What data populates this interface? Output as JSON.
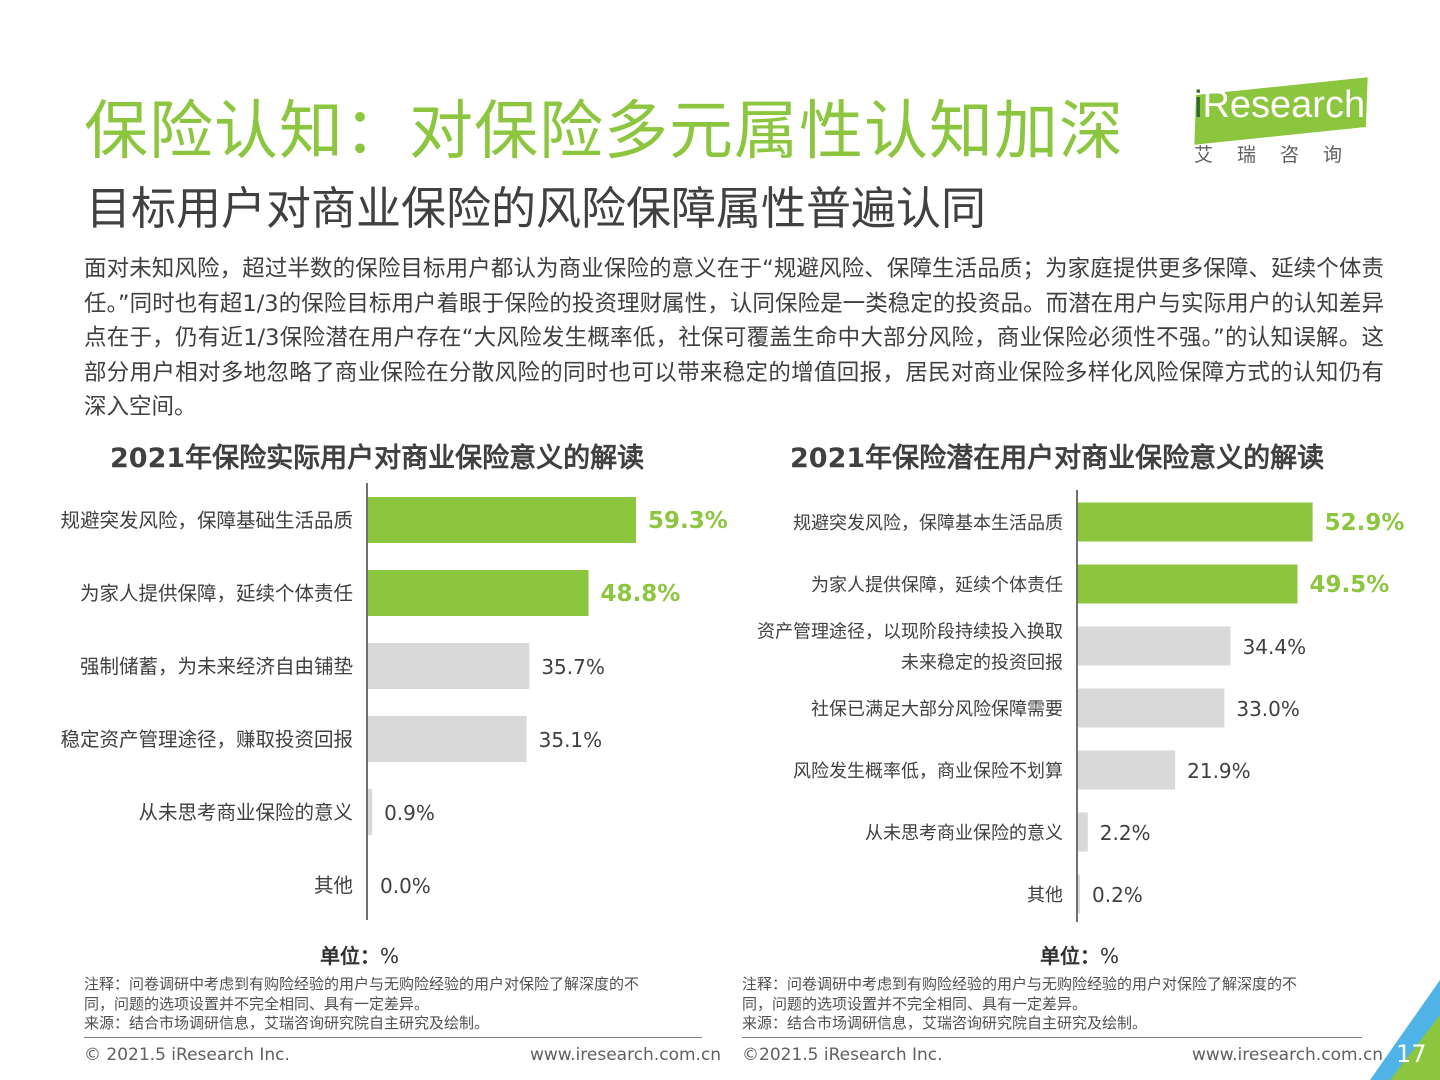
{
  "header": {
    "title": "保险认知：对保险多元属性认知加深",
    "subtitle": "目标用户对商业保险的风险保障属性普遍认同"
  },
  "logo": {
    "word_i": "i",
    "word_rest": "Research",
    "cn": "艾瑞咨询"
  },
  "summary": "面对未知风险，超过半数的保险目标用户都认为商业保险的意义在于“规避风险、保障生活品质；为家庭提供更多保障、延续个体责任。”同时也有超1/3的保险目标用户着眼于保险的投资理财属性，认同保险是一类稳定的投资品。而潜在用户与实际用户的认知差异点在于，仍有近1/3保险潜在用户存在“大风险发生概率低，社保可覆盖生命中大部分风险，商业保险必须性不强。”的认知误解。这部分用户相对多地忽略了商业保险在分散风险的同时也可以带来稳定的增值回报，居民对商业保险多样化风险保障方式的认知仍有深入空间。",
  "colors": {
    "accent": "#8cc63f",
    "bar_gray": "#d9d9d9",
    "axis": "#404040",
    "highlight_label": "#8cc63f",
    "corner_blue": "#4fb3e8"
  },
  "left_panel": {
    "unit_label": "单位：",
    "unit_value": "%",
    "note_line1": "注释：问卷调研中考虑到有购险经验的用户与无购险经验的用户对保险了解深度的不",
    "note_line2": "同，问题的选项设置并不完全相同、具有一定差异。",
    "source": "来源：结合市场调研信息，艾瑞咨询研究院自主研究及绘制。",
    "footer_left": "© 2021.5 iResearch Inc.",
    "footer_right": "www.iresearch.com.cn"
  },
  "right_panel": {
    "unit_label": "单位：",
    "unit_value": "%",
    "note_line1": "注释：问卷调研中考虑到有购险经验的用户与无购险经验的用户对保险了解深度的不",
    "note_line2": "同，问题的选项设置并不完全相同、具有一定差异。",
    "source": "来源：结合市场调研信息，艾瑞咨询研究院自主研究及绘制。",
    "footer_left": "©2021.5 iResearch Inc.",
    "footer_right": "www.iresearch.com.cn"
  },
  "page_number": "17",
  "chart_data": [
    {
      "type": "bar",
      "orientation": "horizontal",
      "title": "2021年保险实际用户对商业保险意义的解读",
      "categories": [
        [
          "规避突发风险，保障基础生活品质"
        ],
        [
          "为家人提供保障，延续个体责任"
        ],
        [
          "强制储蓄，为未来经济自由铺垫"
        ],
        [
          "稳定资产管理途径，赚取投资回报"
        ],
        [
          "从未思考商业保险的意义"
        ],
        [
          "其他"
        ]
      ],
      "values": [
        59.3,
        48.8,
        35.7,
        35.1,
        0.9,
        0.0
      ],
      "value_labels": [
        "59.3%",
        "48.8%",
        "35.7%",
        "35.1%",
        "0.9%",
        "0.0%"
      ],
      "highlighted": [
        true,
        true,
        false,
        false,
        false,
        false
      ],
      "unit": "%"
    },
    {
      "type": "bar",
      "orientation": "horizontal",
      "title": "2021年保险潜在用户对商业保险意义的解读",
      "categories": [
        [
          "规避突发风险，保障基本生活品质"
        ],
        [
          "为家人提供保障，延续个体责任"
        ],
        [
          "资产管理途径，以现阶段持续投入换取",
          "未来稳定的投资回报"
        ],
        [
          "社保已满足大部分风险保障需要"
        ],
        [
          "风险发生概率低，商业保险不划算"
        ],
        [
          "从未思考商业保险的意义"
        ],
        [
          "其他"
        ]
      ],
      "values": [
        52.9,
        49.5,
        34.4,
        33.0,
        21.9,
        2.2,
        0.2
      ],
      "value_labels": [
        "52.9%",
        "49.5%",
        "34.4%",
        "33.0%",
        "21.9%",
        "2.2%",
        "0.2%"
      ],
      "highlighted": [
        true,
        true,
        false,
        false,
        false,
        false,
        false
      ],
      "unit": "%"
    }
  ]
}
